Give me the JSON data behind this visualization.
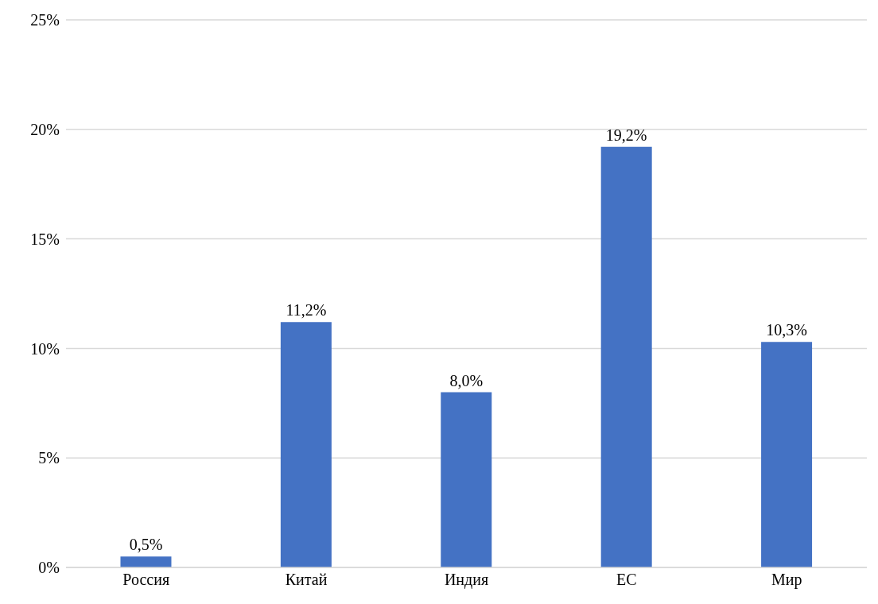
{
  "chart_data": {
    "type": "bar",
    "categories": [
      "Россия",
      "Китай",
      "Индия",
      "ЕС",
      "Мир"
    ],
    "values": [
      0.5,
      11.2,
      8.0,
      19.2,
      10.3
    ],
    "value_labels": [
      "0,5%",
      "11,2%",
      "8,0%",
      "19,2%",
      "10,3%"
    ],
    "color": "#4472c4",
    "ylim": [
      0,
      25
    ],
    "yticks": [
      {
        "value": 0,
        "label": "0%"
      },
      {
        "value": 5,
        "label": "5%"
      },
      {
        "value": 10,
        "label": "10%"
      },
      {
        "value": 15,
        "label": "15%"
      },
      {
        "value": 20,
        "label": "20%"
      },
      {
        "value": 25,
        "label": "25%"
      }
    ],
    "grid": "y"
  }
}
